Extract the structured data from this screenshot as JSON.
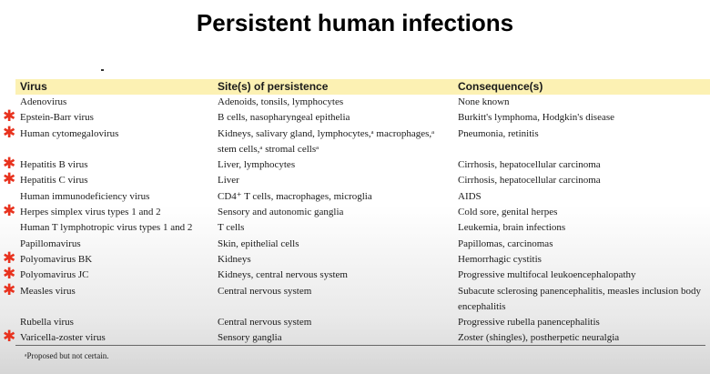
{
  "title": "Persistent human infections",
  "headers": [
    "Virus",
    "Site(s) of persistence",
    "Consequence(s)"
  ],
  "rows": [
    {
      "virus": "Adenovirus",
      "site": "Adenoids, tonsils, lymphocytes",
      "consequence": "None known",
      "marked": false,
      "lines": 1
    },
    {
      "virus": "Epstein-Barr virus",
      "site": "B cells, nasopharyngeal epithelia",
      "consequence": "Burkitt's lymphoma, Hodgkin's disease",
      "marked": true,
      "lines": 1
    },
    {
      "virus": "Human cytomegalovirus",
      "site": "Kidneys, salivary gland, lymphocytes,ᵃ macrophages,ᵃ stem cells,ᵃ stromal cellsᵃ",
      "consequence": "Pneumonia, retinitis",
      "marked": true,
      "lines": 2
    },
    {
      "virus": "Hepatitis B virus",
      "site": "Liver, lymphocytes",
      "consequence": "Cirrhosis, hepatocellular carcinoma",
      "marked": true,
      "lines": 1
    },
    {
      "virus": "Hepatitis C virus",
      "site": "Liver",
      "consequence": "Cirrhosis, hepatocellular carcinoma",
      "marked": true,
      "lines": 1
    },
    {
      "virus": "Human immunodeficiency virus",
      "site": "CD4⁺ T cells, macrophages, microglia",
      "consequence": "AIDS",
      "marked": false,
      "lines": 1
    },
    {
      "virus": "Herpes simplex virus types 1 and 2",
      "site": "Sensory and autonomic ganglia",
      "consequence": "Cold sore, genital herpes",
      "marked": true,
      "lines": 1
    },
    {
      "virus": "Human T lymphotropic virus types 1 and 2",
      "site": "T cells",
      "consequence": "Leukemia, brain infections",
      "marked": false,
      "lines": 1
    },
    {
      "virus": "Papillomavirus",
      "site": "Skin, epithelial cells",
      "consequence": "Papillomas, carcinomas",
      "marked": false,
      "lines": 1
    },
    {
      "virus": "Polyomavirus BK",
      "site": "Kidneys",
      "consequence": "Hemorrhagic cystitis",
      "marked": true,
      "lines": 1
    },
    {
      "virus": "Polyomavirus JC",
      "site": "Kidneys, central nervous system",
      "consequence": "Progressive multifocal leukoencephalopathy",
      "marked": true,
      "lines": 1
    },
    {
      "virus": "Measles virus",
      "site": "Central nervous system",
      "consequence": "Subacute sclerosing panencephalitis, measles inclusion body encephalitis",
      "marked": true,
      "lines": 2
    },
    {
      "virus": "Rubella virus",
      "site": "Central nervous system",
      "consequence": "Progressive rubella panencephalitis",
      "marked": false,
      "lines": 1
    },
    {
      "virus": "Varicella-zoster virus",
      "site": "Sensory ganglia",
      "consequence": "Zoster (shingles), postherpetic neuralgia",
      "marked": true,
      "lines": 1
    }
  ],
  "star_symbol": "✱",
  "star_color": "#e8321e",
  "footnote": "ᵃProposed but not certain."
}
